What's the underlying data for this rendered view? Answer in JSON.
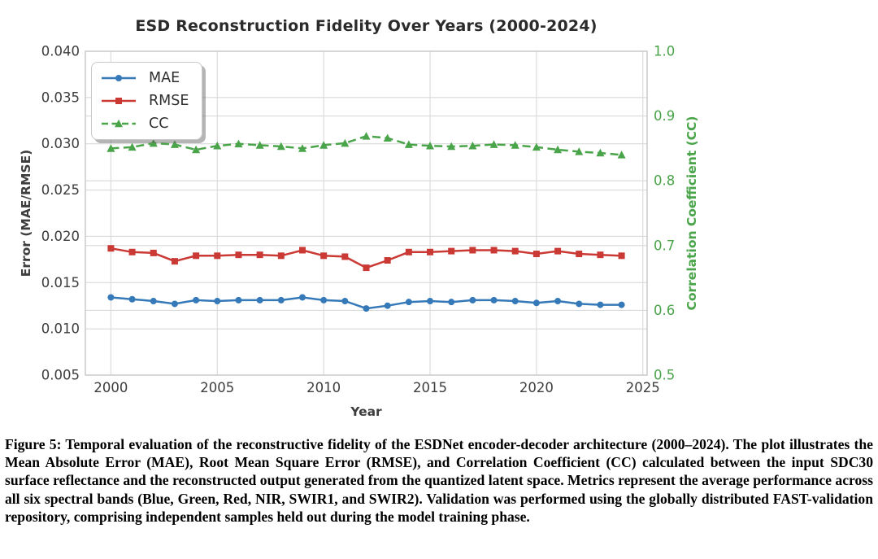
{
  "figure": {
    "caption": "Figure 5: Temporal evaluation of the reconstructive fidelity of the ESDNet encoder-decoder architecture (2000–2024). The plot illustrates the Mean Absolute Error (MAE), Root Mean Square Error (RMSE), and Correlation Coefficient (CC) calculated between the input SDC30 surface reflectance and the reconstructed output generated from the quantized latent space. Metrics represent the average performance across all six spectral bands (Blue, Green, Red, NIR, SWIR1, and SWIR2). Validation was performed using the globally distributed FAST-validation repository, comprising independent samples held out during the model training phase."
  },
  "colors": {
    "grid": "#d9d9d9",
    "spine": "#c6c6c6",
    "tick_text": "#3d3d3d",
    "title_text": "#2b2b2b",
    "right_axis_text": "#4aa44a",
    "mae_blue": "#3579b8",
    "rmse_red": "#cb3935",
    "cc_green": "#4aa44a"
  },
  "chart_data": {
    "type": "line",
    "title": "ESD Reconstruction Fidelity Over Years (2000-2024)",
    "xlabel": "Year",
    "ylabel_left": "Error (MAE/RMSE)",
    "ylabel_right": "Correlation Coefficient (CC)",
    "grid": true,
    "legend_position": "upper left",
    "x": [
      2000,
      2001,
      2002,
      2003,
      2004,
      2005,
      2006,
      2007,
      2008,
      2009,
      2010,
      2011,
      2012,
      2013,
      2014,
      2015,
      2016,
      2017,
      2018,
      2019,
      2020,
      2021,
      2022,
      2023,
      2024
    ],
    "series": [
      {
        "name": "MAE",
        "axis": "left",
        "color": "#3579b8",
        "style": "solid",
        "marker": "circle",
        "values": [
          0.0134,
          0.0132,
          0.013,
          0.0127,
          0.0131,
          0.013,
          0.0131,
          0.0131,
          0.0131,
          0.0134,
          0.0131,
          0.013,
          0.0122,
          0.0125,
          0.0129,
          0.013,
          0.0129,
          0.0131,
          0.0131,
          0.013,
          0.0128,
          0.013,
          0.0127,
          0.0126,
          0.0126
        ]
      },
      {
        "name": "RMSE",
        "axis": "left",
        "color": "#cb3935",
        "style": "solid",
        "marker": "square",
        "values": [
          0.0187,
          0.0183,
          0.0182,
          0.0173,
          0.0179,
          0.0179,
          0.018,
          0.018,
          0.0179,
          0.0185,
          0.0179,
          0.0178,
          0.0166,
          0.0174,
          0.0183,
          0.0183,
          0.0184,
          0.0185,
          0.0185,
          0.0184,
          0.0181,
          0.0184,
          0.0181,
          0.018,
          0.0179
        ]
      },
      {
        "name": "CC",
        "axis": "right",
        "color": "#4aa44a",
        "style": "dashed",
        "marker": "triangle",
        "values": [
          0.85,
          0.852,
          0.858,
          0.856,
          0.848,
          0.854,
          0.857,
          0.855,
          0.853,
          0.85,
          0.855,
          0.858,
          0.869,
          0.866,
          0.856,
          0.854,
          0.853,
          0.854,
          0.856,
          0.855,
          0.852,
          0.848,
          0.845,
          0.843,
          0.84
        ]
      }
    ],
    "x_axis": {
      "range": [
        1998.8,
        2025.2
      ],
      "ticks": [
        2000,
        2005,
        2010,
        2015,
        2020,
        2025
      ],
      "tick_labels": [
        "2000",
        "2005",
        "2010",
        "2015",
        "2020",
        "2025"
      ]
    },
    "left_axis": {
      "range": [
        0.005,
        0.04
      ],
      "ticks": [
        0.005,
        0.01,
        0.015,
        0.02,
        0.025,
        0.03,
        0.035,
        0.04
      ],
      "tick_labels": [
        "0.005",
        "0.010",
        "0.015",
        "0.020",
        "0.025",
        "0.030",
        "0.035",
        "0.040"
      ]
    },
    "right_axis": {
      "range": [
        0.5,
        1.0
      ],
      "ticks": [
        0.5,
        0.6,
        0.7,
        0.8,
        0.9,
        1.0
      ],
      "tick_labels": [
        "0.5",
        "0.6",
        "0.7",
        "0.8",
        "0.9",
        "1.0"
      ]
    }
  }
}
